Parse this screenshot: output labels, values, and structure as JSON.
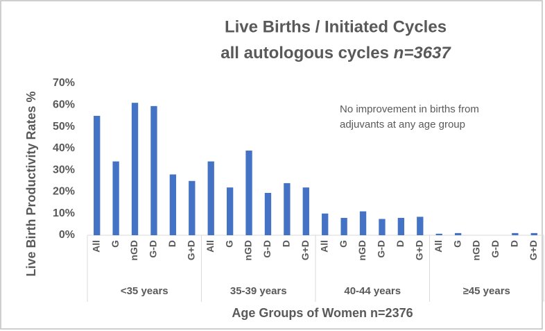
{
  "chart_data": {
    "type": "bar",
    "title": "Live Births / Initiated Cycles",
    "subtitle": "all autologous cycles",
    "subtitle_emphasis": "n=3637",
    "annotation": [
      "No improvement in births from",
      "adjuvants at any age group"
    ],
    "x_label": "Age Groups of Women n=2376",
    "y_label": "Live Birth Productivity Rates %",
    "groups": [
      "<35 years",
      "35-39 years",
      "40-44 years",
      "≥45 years"
    ],
    "categories": [
      "All",
      "G",
      "nGD",
      "G-D",
      "D",
      "G+D",
      "All",
      "G",
      "nGD",
      "G-D",
      "D",
      "G+D",
      "All",
      "G",
      "nGD",
      "G-D",
      "D",
      "G+D",
      "All",
      "G",
      "nGD",
      "G-D",
      "D",
      "G+D"
    ],
    "values": [
      55,
      34,
      61,
      59.5,
      28,
      25,
      34,
      22,
      39,
      19.5,
      24,
      22,
      10,
      8,
      11,
      7.5,
      8,
      8.5,
      0.7,
      1,
      0,
      0,
      1,
      1
    ],
    "color": "#4472c4",
    "ylim": [
      0,
      70
    ],
    "yticks": [
      {
        "value": 0,
        "label": "0%"
      },
      {
        "value": 10,
        "label": "10%"
      },
      {
        "value": 20,
        "label": "20%"
      },
      {
        "value": 30,
        "label": "30%"
      },
      {
        "value": 40,
        "label": "40%"
      },
      {
        "value": 50,
        "label": "50%"
      },
      {
        "value": 60,
        "label": "60%"
      },
      {
        "value": 70,
        "label": "70%"
      }
    ],
    "grid": false
  }
}
